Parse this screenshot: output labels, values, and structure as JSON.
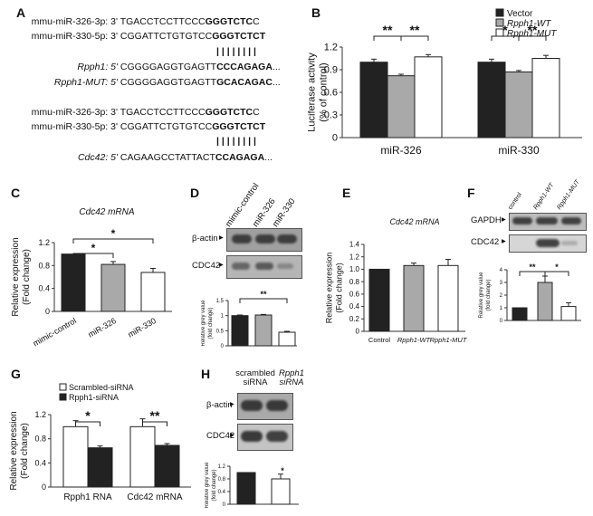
{
  "panel_labels": {
    "A": "A",
    "B": "B",
    "C": "C",
    "D": "D",
    "E": "E",
    "F": "F",
    "G": "G",
    "H": "H"
  },
  "panelA": {
    "block1": [
      {
        "name": "mmu-miR-326-3p: 3'",
        "pre": "TGACCTCCTTCCC",
        "bold": "GGGTCTC",
        "post": "C"
      },
      {
        "name": "mmu-miR-330-5p: 3'",
        "pre": "CGGATTCTGTGTCC",
        "bold": "GGGTCTCT",
        "post": ""
      },
      {
        "name": "Rpph1: 5'",
        "pre": "CGGGGAGGTGAGTT",
        "bold": "CCCAGAGA",
        "post": "..."
      },
      {
        "name": "Rpph1-MUT: 5'",
        "pre": "CGGGGAGGTGAGTT",
        "bold": "GCACAGAC",
        "post": "..."
      }
    ],
    "block2": [
      {
        "name": "mmu-miR-326-3p: 3'",
        "pre": "TGACCTCCTTCCC",
        "bold": "GGGTCTC",
        "post": "C"
      },
      {
        "name": "mmu-miR-330-5p: 3'",
        "pre": "CGGATTCTGTGTCC",
        "bold": "GGGTCTCT",
        "post": ""
      },
      {
        "name": "Cdc42: 5'",
        "pre": "CAGAAGCCTATTACT",
        "bold": "CCAGAGA",
        "post": "..."
      }
    ],
    "pairing": "| | | | | | | |"
  },
  "chart_data": [
    {
      "panel": "B",
      "type": "bar",
      "legend": [
        "Vector",
        "Rpph1-WT",
        "Rpph1-MUT"
      ],
      "categories": [
        "miR-326",
        "miR-330"
      ],
      "series": [
        {
          "name": "Vector",
          "values": [
            1.0,
            1.0
          ],
          "errors": [
            0.04,
            0.04
          ],
          "color": "#222222"
        },
        {
          "name": "Rpph1-WT",
          "values": [
            0.82,
            0.87
          ],
          "errors": [
            0.02,
            0.02
          ],
          "color": "#a9a9a9"
        },
        {
          "name": "Rpph1-MUT",
          "values": [
            1.07,
            1.05
          ],
          "errors": [
            0.03,
            0.04
          ],
          "color": "#ffffff"
        }
      ],
      "ylabel": "Luciferase activity\n(% of control)",
      "ylim": [
        0,
        1.2
      ],
      "yticks": [
        "0",
        "0.3",
        "0.6",
        "0.9",
        "1.2"
      ],
      "significance": [
        [
          "**",
          "**"
        ],
        [
          "*",
          "**"
        ]
      ]
    },
    {
      "panel": "C",
      "type": "bar",
      "title": "Cdc42 mRNA",
      "categories": [
        "mimic-control",
        "miR-326",
        "miR-330"
      ],
      "values": [
        1.0,
        0.82,
        0.68
      ],
      "errors": [
        0.0,
        0.05,
        0.07
      ],
      "colors": [
        "#222222",
        "#a9a9a9",
        "#ffffff"
      ],
      "ylabel": "Relative expression\n(Fold change)",
      "ylim": [
        0,
        1.2
      ],
      "yticks": [
        "0",
        "0.4",
        "0.8",
        "1.2"
      ],
      "significance": [
        "*",
        "*"
      ]
    },
    {
      "panel": "D",
      "type": "bar",
      "values": [
        1.0,
        1.02,
        0.45
      ],
      "errors": [
        0.02,
        0.02,
        0.03
      ],
      "colors": [
        "#222222",
        "#a9a9a9",
        "#ffffff"
      ],
      "ylabel": "Relative grey value\n(fold change)",
      "ylim": [
        0,
        1.5
      ],
      "yticks": [
        "0",
        "0.5",
        "1",
        "1.5"
      ],
      "significance": "**"
    },
    {
      "panel": "E",
      "type": "bar",
      "title": "Cdc42 mRNA",
      "categories": [
        "Control",
        "Rpph1-WT",
        "Rpph1-MUT"
      ],
      "values": [
        1.0,
        1.06,
        1.06
      ],
      "errors": [
        0.0,
        0.04,
        0.1
      ],
      "colors": [
        "#222222",
        "#a9a9a9",
        "#ffffff"
      ],
      "ylabel": "Relative expression\n(Fold change)",
      "ylim": [
        0,
        1.4
      ],
      "yticks": [
        "0",
        "0.2",
        "0.4",
        "0.6",
        "0.8",
        "1.0",
        "1.2",
        "1.4"
      ]
    },
    {
      "panel": "F",
      "type": "bar",
      "values": [
        1.0,
        3.0,
        1.1
      ],
      "errors": [
        0.0,
        0.5,
        0.3
      ],
      "colors": [
        "#222222",
        "#a9a9a9",
        "#ffffff"
      ],
      "ylabel": "Relative grey value\n(fold change)",
      "ylim": [
        0,
        4
      ],
      "yticks": [
        "0",
        "1",
        "2",
        "3",
        "4"
      ],
      "significance": [
        "**",
        "*"
      ]
    },
    {
      "panel": "G",
      "type": "bar",
      "legend": [
        "Scrambled-siRNA",
        "Rpph1-siRNA"
      ],
      "categories": [
        "Rpph1 RNA",
        "Cdc42 mRNA"
      ],
      "series": [
        {
          "name": "Scrambled-siRNA",
          "values": [
            1.0,
            1.0
          ],
          "errors": [
            0.1,
            0.13
          ],
          "color": "#ffffff"
        },
        {
          "name": "Rpph1-siRNA",
          "values": [
            0.65,
            0.69
          ],
          "errors": [
            0.03,
            0.03
          ],
          "color": "#222222"
        }
      ],
      "ylabel": "Relative expression\n(Fold change)",
      "ylim": [
        0,
        1.2
      ],
      "yticks": [
        "0",
        "0.4",
        "0.8",
        "1.2"
      ],
      "significance": [
        "*",
        "**"
      ]
    },
    {
      "panel": "H",
      "type": "bar",
      "values": [
        1.0,
        0.8
      ],
      "errors": [
        0.0,
        0.15
      ],
      "colors": [
        "#222222",
        "#ffffff"
      ],
      "ylabel": "Relative grey value\n(fold change)",
      "ylim": [
        0,
        1.2
      ],
      "yticks": [
        "0",
        "0.4",
        "0.8",
        "1.2"
      ],
      "significance": "*"
    }
  ],
  "blots": {
    "D": {
      "lanes": [
        "mimic-control",
        "miR-326",
        "miR-330"
      ],
      "rows": [
        "β-actin",
        "CDC42"
      ]
    },
    "F": {
      "lanes": [
        "control",
        "Rpph1-WT",
        "Rpph1-MUT"
      ],
      "rows": [
        "GAPDH",
        "CDC42"
      ]
    },
    "H": {
      "lanes": [
        "scrambled siRNA",
        "Rpph1 siRNA"
      ],
      "rows": [
        "β-actin",
        "CDC42"
      ]
    }
  }
}
